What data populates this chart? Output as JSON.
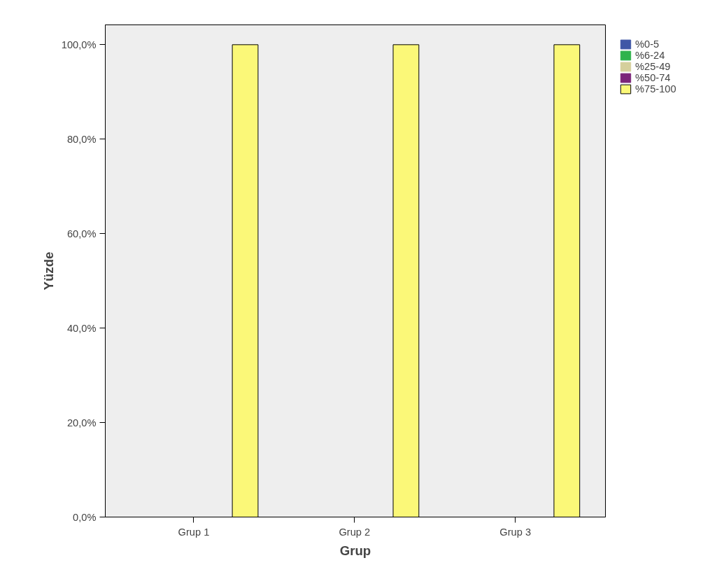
{
  "chart_data": {
    "type": "bar",
    "xlabel": "Grup",
    "ylabel": "Yüzde",
    "categories": [
      "Grup 1",
      "Grup 2",
      "Grup 3"
    ],
    "series": [
      {
        "name": "%0-5",
        "color": "#3f57a6",
        "values": [
          0,
          0,
          0
        ]
      },
      {
        "name": "%6-24",
        "color": "#2fb34c",
        "values": [
          0,
          0,
          0
        ]
      },
      {
        "name": "%25-49",
        "color": "#d5cf9c",
        "values": [
          0,
          0,
          0
        ]
      },
      {
        "name": "%50-74",
        "color": "#7b2479",
        "values": [
          0,
          0,
          0
        ]
      },
      {
        "name": "%75-100",
        "color": "#fbf878",
        "values": [
          100,
          100,
          100
        ]
      }
    ],
    "ylim": [
      0,
      104.2
    ],
    "yticks": [
      {
        "value": 0,
        "label": "0,0%"
      },
      {
        "value": 20,
        "label": "20,0%"
      },
      {
        "value": 40,
        "label": "40,0%"
      },
      {
        "value": 60,
        "label": "60,0%"
      },
      {
        "value": 80,
        "label": "80,0%"
      },
      {
        "value": 100,
        "label": "100,0%"
      }
    ],
    "grid": false,
    "legend": "top right"
  }
}
